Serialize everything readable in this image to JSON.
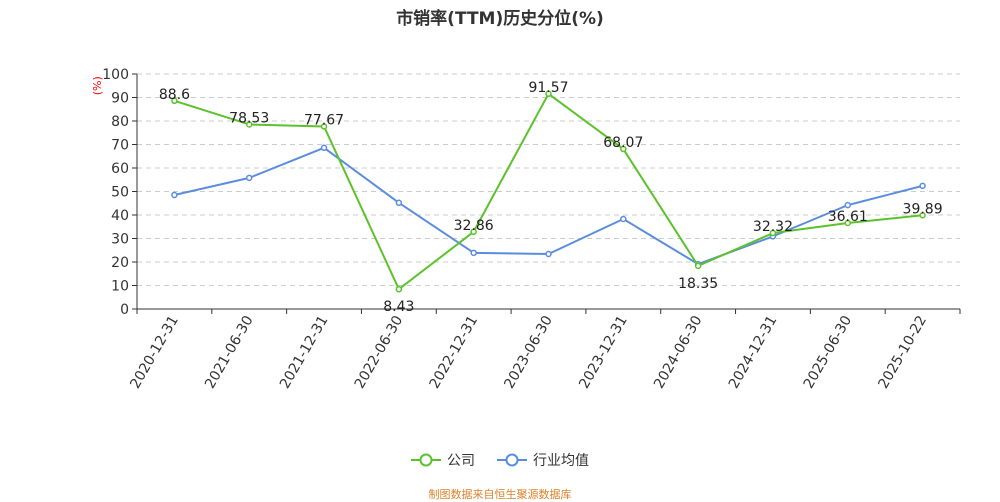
{
  "title": "市销率(TTM)历史分位(%)",
  "source_note": "制图数据来自恒生聚源数据库",
  "legend_icon": "circle-line-icon",
  "colors": {
    "company": "#5cc22b",
    "industry": "#5b8ddf",
    "axis": "#333333",
    "grid": "#cccccc",
    "unit_label": "#ff0000",
    "source": "#d9822b"
  },
  "chart_data": {
    "type": "line",
    "title": "市销率(TTM)历史分位(%)",
    "ylabel": "(%)",
    "xlabel": "",
    "ylim": [
      0,
      100
    ],
    "yticks": [
      0,
      10,
      20,
      30,
      40,
      50,
      60,
      70,
      80,
      90,
      100
    ],
    "grid": true,
    "legend_position": "bottom",
    "categories": [
      "2020-12-31",
      "2021-06-30",
      "2021-12-31",
      "2022-06-30",
      "2022-12-31",
      "2023-06-30",
      "2023-12-31",
      "2024-06-30",
      "2024-12-31",
      "2025-06-30",
      "2025-10-22"
    ],
    "series": [
      {
        "name": "公司",
        "values": [
          88.6,
          78.53,
          77.67,
          8.43,
          32.86,
          91.57,
          68.07,
          18.35,
          32.32,
          36.61,
          39.89
        ],
        "data_labels": true
      },
      {
        "name": "行业均值",
        "values": [
          48.5,
          55.8,
          68.6,
          45.2,
          23.9,
          23.4,
          38.3,
          19.1,
          30.9,
          44.2,
          52.4
        ],
        "data_labels": false
      }
    ]
  }
}
